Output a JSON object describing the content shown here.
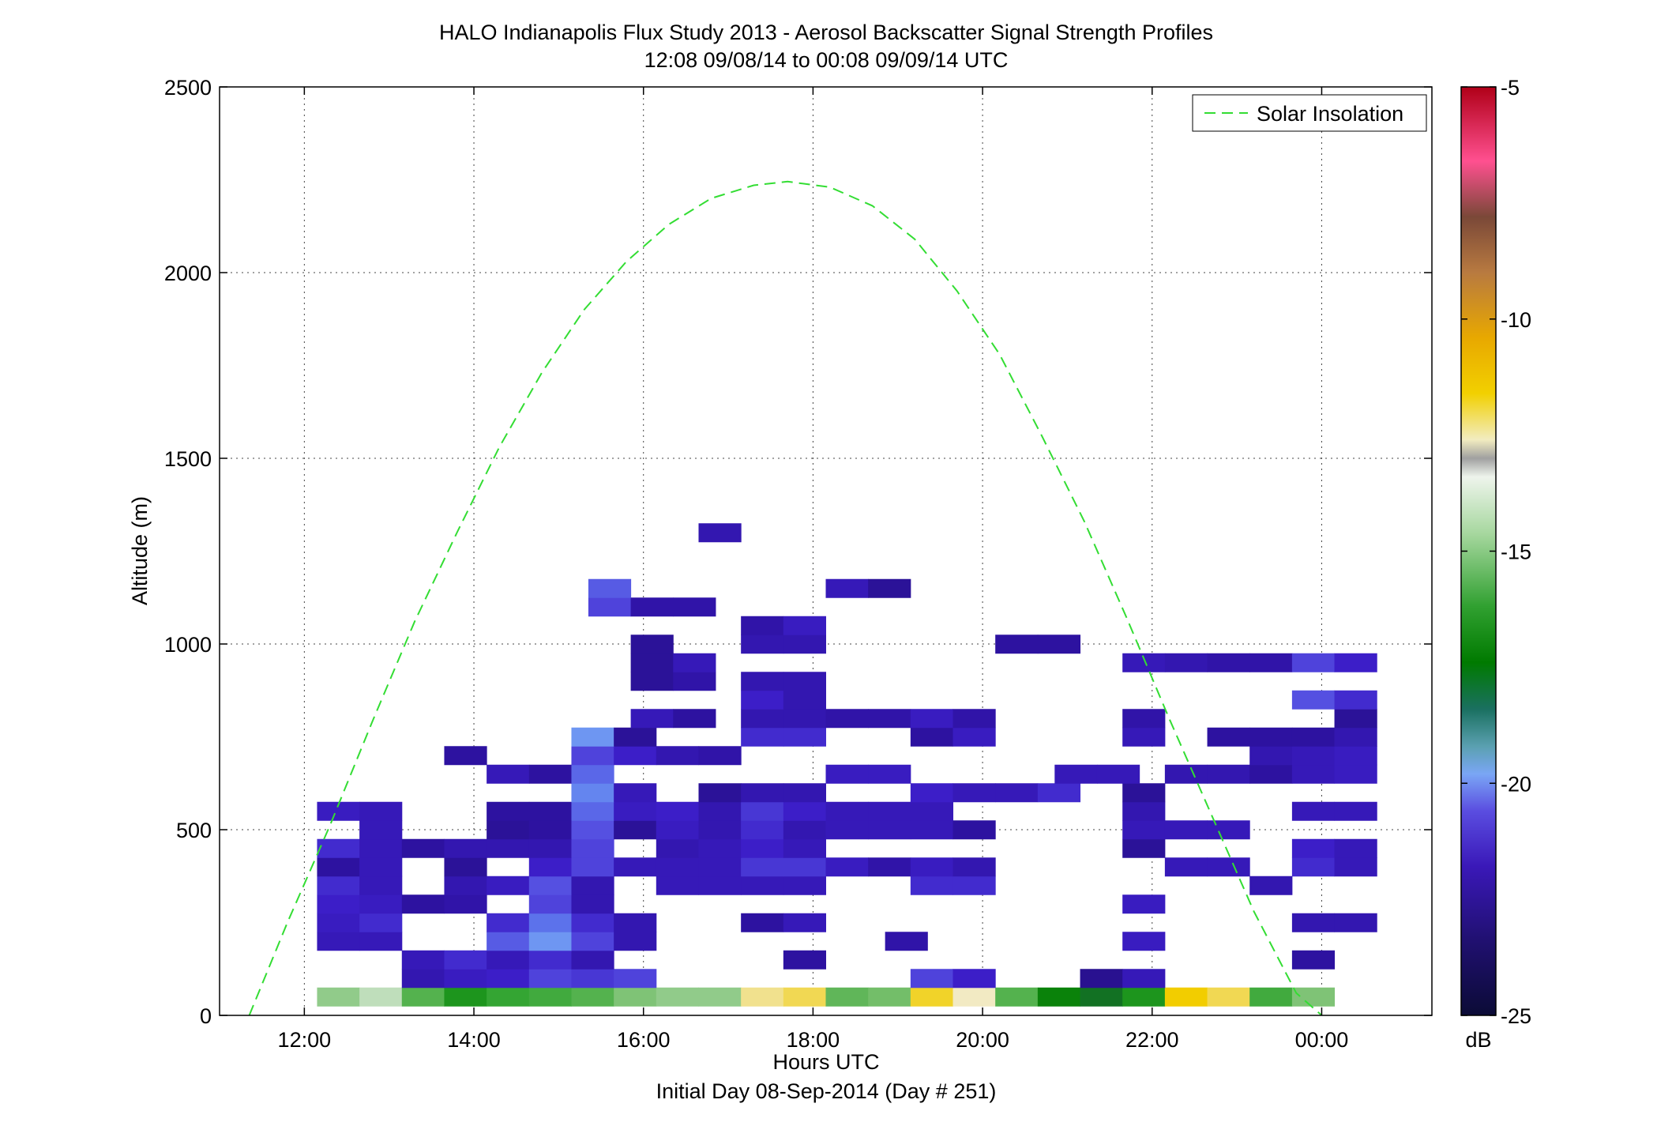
{
  "chart_data": {
    "type": "heatmap",
    "title": "HALO Indianapolis Flux Study 2013 - Aerosol Backscatter Signal Strength Profiles",
    "subtitle": "12:08 09/08/14 to 00:08 09/09/14  UTC",
    "xlabel": "Hours UTC",
    "xlabel2": "Initial Day 08-Sep-2014 (Day # 251)",
    "ylabel": "Altitude (m)",
    "xlim": [
      11.0,
      25.3
    ],
    "ylim": [
      0,
      2500
    ],
    "x_ticks": [
      12,
      14,
      16,
      18,
      20,
      22,
      24
    ],
    "x_tick_labels": [
      "12:00",
      "14:00",
      "16:00",
      "18:00",
      "20:00",
      "22:00",
      "00:00"
    ],
    "y_ticks": [
      0,
      500,
      1000,
      1500,
      2000,
      2500
    ],
    "y_tick_labels": [
      "0",
      "500",
      "1000",
      "1500",
      "2000",
      "2500"
    ],
    "grid": true,
    "legend": {
      "position": "top-right",
      "entries": [
        "Solar Insolation"
      ]
    },
    "colorbar": {
      "label": "dB",
      "range": [
        -25,
        -5
      ],
      "ticks": [
        -25,
        -20,
        -15,
        -10,
        -5
      ],
      "tick_labels": [
        "-25",
        "-20",
        "-15",
        "-10",
        "-5"
      ]
    },
    "bin_width_hours": 0.5,
    "bin_height_m": 50,
    "cells": [
      {
        "x": 12.4,
        "y": 50,
        "v": -16.5
      },
      {
        "x": 12.9,
        "y": 50,
        "v": -15.8
      },
      {
        "x": 13.4,
        "y": 50,
        "v": -17.5
      },
      {
        "x": 13.9,
        "y": 50,
        "v": -18.5
      },
      {
        "x": 14.4,
        "y": 50,
        "v": -18.0
      },
      {
        "x": 14.9,
        "y": 50,
        "v": -17.8
      },
      {
        "x": 15.4,
        "y": 50,
        "v": -17.5
      },
      {
        "x": 15.9,
        "y": 50,
        "v": -16.8
      },
      {
        "x": 16.4,
        "y": 50,
        "v": -16.5
      },
      {
        "x": 16.9,
        "y": 50,
        "v": -16.5
      },
      {
        "x": 17.4,
        "y": 50,
        "v": -14.3
      },
      {
        "x": 17.9,
        "y": 50,
        "v": -13.8
      },
      {
        "x": 18.4,
        "y": 50,
        "v": -17.3
      },
      {
        "x": 18.9,
        "y": 50,
        "v": -17.0
      },
      {
        "x": 19.4,
        "y": 50,
        "v": -13.5
      },
      {
        "x": 19.9,
        "y": 50,
        "v": -14.8
      },
      {
        "x": 20.4,
        "y": 50,
        "v": -17.5
      },
      {
        "x": 20.9,
        "y": 50,
        "v": -19.0
      },
      {
        "x": 21.4,
        "y": 50,
        "v": -19.5
      },
      {
        "x": 21.9,
        "y": 50,
        "v": -18.5
      },
      {
        "x": 22.4,
        "y": 50,
        "v": -13.2
      },
      {
        "x": 22.9,
        "y": 50,
        "v": -13.8
      },
      {
        "x": 23.4,
        "y": 50,
        "v": -17.8
      },
      {
        "x": 23.9,
        "y": 50,
        "v": -16.8
      },
      {
        "x": 13.4,
        "y": 100,
        "v": -22.6
      },
      {
        "x": 13.9,
        "y": 100,
        "v": -22.4
      },
      {
        "x": 14.4,
        "y": 100,
        "v": -22.3
      },
      {
        "x": 14.9,
        "y": 100,
        "v": -22.0
      },
      {
        "x": 15.4,
        "y": 100,
        "v": -22.1
      },
      {
        "x": 15.9,
        "y": 100,
        "v": -22.0
      },
      {
        "x": 19.4,
        "y": 100,
        "v": -22.0
      },
      {
        "x": 19.9,
        "y": 100,
        "v": -22.3
      },
      {
        "x": 21.4,
        "y": 100,
        "v": -23.0
      },
      {
        "x": 21.9,
        "y": 100,
        "v": -22.5
      },
      {
        "x": 13.4,
        "y": 150,
        "v": -22.5
      },
      {
        "x": 13.9,
        "y": 150,
        "v": -22.2
      },
      {
        "x": 14.4,
        "y": 150,
        "v": -22.5
      },
      {
        "x": 14.9,
        "y": 150,
        "v": -22.2
      },
      {
        "x": 15.4,
        "y": 150,
        "v": -22.6
      },
      {
        "x": 17.9,
        "y": 150,
        "v": -22.8
      },
      {
        "x": 23.9,
        "y": 150,
        "v": -22.8
      },
      {
        "x": 12.4,
        "y": 200,
        "v": -22.5
      },
      {
        "x": 12.9,
        "y": 200,
        "v": -22.5
      },
      {
        "x": 14.4,
        "y": 200,
        "v": -21.8
      },
      {
        "x": 14.9,
        "y": 200,
        "v": -21.2
      },
      {
        "x": 15.4,
        "y": 200,
        "v": -22.0
      },
      {
        "x": 15.9,
        "y": 200,
        "v": -22.6
      },
      {
        "x": 19.1,
        "y": 200,
        "v": -22.7
      },
      {
        "x": 21.9,
        "y": 200,
        "v": -22.4
      },
      {
        "x": 12.4,
        "y": 250,
        "v": -22.4
      },
      {
        "x": 12.9,
        "y": 250,
        "v": -22.2
      },
      {
        "x": 14.4,
        "y": 250,
        "v": -22.2
      },
      {
        "x": 14.9,
        "y": 250,
        "v": -21.6
      },
      {
        "x": 15.4,
        "y": 250,
        "v": -22.2
      },
      {
        "x": 15.9,
        "y": 250,
        "v": -22.6
      },
      {
        "x": 17.4,
        "y": 250,
        "v": -22.8
      },
      {
        "x": 17.9,
        "y": 250,
        "v": -22.5
      },
      {
        "x": 23.9,
        "y": 250,
        "v": -22.6
      },
      {
        "x": 24.4,
        "y": 250,
        "v": -22.6
      },
      {
        "x": 12.4,
        "y": 300,
        "v": -22.3
      },
      {
        "x": 12.9,
        "y": 300,
        "v": -22.4
      },
      {
        "x": 13.4,
        "y": 300,
        "v": -22.8
      },
      {
        "x": 13.9,
        "y": 300,
        "v": -22.7
      },
      {
        "x": 14.9,
        "y": 300,
        "v": -22.0
      },
      {
        "x": 15.4,
        "y": 300,
        "v": -22.6
      },
      {
        "x": 21.9,
        "y": 300,
        "v": -22.4
      },
      {
        "x": 12.4,
        "y": 350,
        "v": -22.2
      },
      {
        "x": 12.9,
        "y": 350,
        "v": -22.5
      },
      {
        "x": 13.9,
        "y": 350,
        "v": -22.6
      },
      {
        "x": 14.4,
        "y": 350,
        "v": -22.4
      },
      {
        "x": 14.9,
        "y": 350,
        "v": -21.9
      },
      {
        "x": 15.4,
        "y": 350,
        "v": -22.6
      },
      {
        "x": 16.4,
        "y": 350,
        "v": -22.5
      },
      {
        "x": 16.9,
        "y": 350,
        "v": -22.5
      },
      {
        "x": 17.4,
        "y": 350,
        "v": -22.5
      },
      {
        "x": 17.9,
        "y": 350,
        "v": -22.5
      },
      {
        "x": 19.4,
        "y": 350,
        "v": -22.2
      },
      {
        "x": 19.9,
        "y": 350,
        "v": -22.2
      },
      {
        "x": 23.4,
        "y": 350,
        "v": -22.6
      },
      {
        "x": 12.4,
        "y": 400,
        "v": -22.8
      },
      {
        "x": 12.9,
        "y": 400,
        "v": -22.5
      },
      {
        "x": 13.9,
        "y": 400,
        "v": -22.9
      },
      {
        "x": 14.9,
        "y": 400,
        "v": -22.3
      },
      {
        "x": 15.4,
        "y": 400,
        "v": -22.0
      },
      {
        "x": 15.9,
        "y": 400,
        "v": -22.5
      },
      {
        "x": 16.4,
        "y": 400,
        "v": -22.5
      },
      {
        "x": 16.9,
        "y": 400,
        "v": -22.5
      },
      {
        "x": 17.4,
        "y": 400,
        "v": -22.1
      },
      {
        "x": 17.9,
        "y": 400,
        "v": -22.1
      },
      {
        "x": 18.4,
        "y": 400,
        "v": -22.4
      },
      {
        "x": 18.9,
        "y": 400,
        "v": -22.7
      },
      {
        "x": 19.4,
        "y": 400,
        "v": -22.4
      },
      {
        "x": 19.9,
        "y": 400,
        "v": -22.6
      },
      {
        "x": 22.4,
        "y": 400,
        "v": -22.5
      },
      {
        "x": 22.9,
        "y": 400,
        "v": -22.5
      },
      {
        "x": 23.9,
        "y": 400,
        "v": -22.2
      },
      {
        "x": 24.4,
        "y": 400,
        "v": -22.5
      },
      {
        "x": 12.4,
        "y": 450,
        "v": -22.2
      },
      {
        "x": 12.9,
        "y": 450,
        "v": -22.5
      },
      {
        "x": 13.4,
        "y": 450,
        "v": -22.8
      },
      {
        "x": 13.9,
        "y": 450,
        "v": -22.6
      },
      {
        "x": 14.4,
        "y": 450,
        "v": -22.6
      },
      {
        "x": 14.9,
        "y": 450,
        "v": -22.6
      },
      {
        "x": 15.4,
        "y": 450,
        "v": -22.0
      },
      {
        "x": 16.4,
        "y": 450,
        "v": -22.6
      },
      {
        "x": 16.9,
        "y": 450,
        "v": -22.5
      },
      {
        "x": 17.4,
        "y": 450,
        "v": -22.3
      },
      {
        "x": 17.9,
        "y": 450,
        "v": -22.5
      },
      {
        "x": 21.9,
        "y": 450,
        "v": -22.9
      },
      {
        "x": 23.9,
        "y": 450,
        "v": -22.3
      },
      {
        "x": 24.4,
        "y": 450,
        "v": -22.5
      },
      {
        "x": 12.9,
        "y": 500,
        "v": -22.5
      },
      {
        "x": 14.4,
        "y": 500,
        "v": -22.9
      },
      {
        "x": 14.9,
        "y": 500,
        "v": -22.8
      },
      {
        "x": 15.4,
        "y": 500,
        "v": -21.9
      },
      {
        "x": 15.9,
        "y": 500,
        "v": -22.9
      },
      {
        "x": 16.4,
        "y": 500,
        "v": -22.4
      },
      {
        "x": 16.9,
        "y": 500,
        "v": -22.6
      },
      {
        "x": 17.4,
        "y": 500,
        "v": -22.2
      },
      {
        "x": 17.9,
        "y": 500,
        "v": -22.6
      },
      {
        "x": 18.4,
        "y": 500,
        "v": -22.5
      },
      {
        "x": 18.9,
        "y": 500,
        "v": -22.5
      },
      {
        "x": 19.4,
        "y": 500,
        "v": -22.5
      },
      {
        "x": 19.9,
        "y": 500,
        "v": -22.8
      },
      {
        "x": 21.9,
        "y": 500,
        "v": -22.5
      },
      {
        "x": 22.4,
        "y": 500,
        "v": -22.5
      },
      {
        "x": 22.9,
        "y": 500,
        "v": -22.5
      },
      {
        "x": 12.4,
        "y": 550,
        "v": -22.4
      },
      {
        "x": 12.9,
        "y": 550,
        "v": -22.5
      },
      {
        "x": 14.4,
        "y": 550,
        "v": -22.8
      },
      {
        "x": 14.9,
        "y": 550,
        "v": -22.8
      },
      {
        "x": 15.4,
        "y": 550,
        "v": -21.7
      },
      {
        "x": 15.9,
        "y": 550,
        "v": -22.4
      },
      {
        "x": 16.4,
        "y": 550,
        "v": -22.3
      },
      {
        "x": 16.9,
        "y": 550,
        "v": -22.6
      },
      {
        "x": 17.4,
        "y": 550,
        "v": -22.1
      },
      {
        "x": 17.9,
        "y": 550,
        "v": -22.3
      },
      {
        "x": 18.4,
        "y": 550,
        "v": -22.5
      },
      {
        "x": 18.9,
        "y": 550,
        "v": -22.5
      },
      {
        "x": 19.4,
        "y": 550,
        "v": -22.5
      },
      {
        "x": 21.9,
        "y": 550,
        "v": -22.6
      },
      {
        "x": 23.9,
        "y": 550,
        "v": -22.5
      },
      {
        "x": 24.4,
        "y": 550,
        "v": -22.5
      },
      {
        "x": 15.4,
        "y": 600,
        "v": -21.4
      },
      {
        "x": 15.9,
        "y": 600,
        "v": -22.5
      },
      {
        "x": 16.9,
        "y": 600,
        "v": -22.9
      },
      {
        "x": 17.4,
        "y": 600,
        "v": -22.6
      },
      {
        "x": 17.9,
        "y": 600,
        "v": -22.6
      },
      {
        "x": 19.4,
        "y": 600,
        "v": -22.3
      },
      {
        "x": 19.9,
        "y": 600,
        "v": -22.5
      },
      {
        "x": 20.4,
        "y": 600,
        "v": -22.5
      },
      {
        "x": 20.9,
        "y": 600,
        "v": -22.2
      },
      {
        "x": 21.9,
        "y": 600,
        "v": -22.9
      },
      {
        "x": 14.4,
        "y": 650,
        "v": -22.5
      },
      {
        "x": 14.9,
        "y": 650,
        "v": -22.8
      },
      {
        "x": 15.4,
        "y": 650,
        "v": -21.7
      },
      {
        "x": 18.4,
        "y": 650,
        "v": -22.4
      },
      {
        "x": 18.9,
        "y": 650,
        "v": -22.4
      },
      {
        "x": 21.1,
        "y": 650,
        "v": -22.5
      },
      {
        "x": 21.6,
        "y": 650,
        "v": -22.5
      },
      {
        "x": 22.4,
        "y": 650,
        "v": -22.6
      },
      {
        "x": 22.9,
        "y": 650,
        "v": -22.6
      },
      {
        "x": 23.4,
        "y": 650,
        "v": -22.8
      },
      {
        "x": 23.9,
        "y": 650,
        "v": -22.5
      },
      {
        "x": 24.4,
        "y": 650,
        "v": -22.4
      },
      {
        "x": 13.9,
        "y": 700,
        "v": -22.8
      },
      {
        "x": 15.4,
        "y": 700,
        "v": -22.0
      },
      {
        "x": 15.9,
        "y": 700,
        "v": -22.3
      },
      {
        "x": 16.4,
        "y": 700,
        "v": -22.6
      },
      {
        "x": 16.9,
        "y": 700,
        "v": -22.7
      },
      {
        "x": 23.4,
        "y": 700,
        "v": -22.6
      },
      {
        "x": 23.9,
        "y": 700,
        "v": -22.5
      },
      {
        "x": 24.4,
        "y": 700,
        "v": -22.4
      },
      {
        "x": 15.4,
        "y": 750,
        "v": -21.2
      },
      {
        "x": 15.9,
        "y": 750,
        "v": -22.9
      },
      {
        "x": 17.4,
        "y": 750,
        "v": -22.2
      },
      {
        "x": 17.9,
        "y": 750,
        "v": -22.2
      },
      {
        "x": 19.4,
        "y": 750,
        "v": -22.8
      },
      {
        "x": 19.9,
        "y": 750,
        "v": -22.4
      },
      {
        "x": 21.9,
        "y": 750,
        "v": -22.5
      },
      {
        "x": 22.9,
        "y": 750,
        "v": -22.8
      },
      {
        "x": 23.4,
        "y": 750,
        "v": -22.8
      },
      {
        "x": 23.9,
        "y": 750,
        "v": -22.8
      },
      {
        "x": 24.4,
        "y": 750,
        "v": -22.6
      },
      {
        "x": 16.1,
        "y": 800,
        "v": -22.5
      },
      {
        "x": 16.6,
        "y": 800,
        "v": -22.8
      },
      {
        "x": 17.4,
        "y": 800,
        "v": -22.6
      },
      {
        "x": 17.9,
        "y": 800,
        "v": -22.6
      },
      {
        "x": 18.4,
        "y": 800,
        "v": -22.7
      },
      {
        "x": 18.9,
        "y": 800,
        "v": -22.7
      },
      {
        "x": 19.4,
        "y": 800,
        "v": -22.4
      },
      {
        "x": 19.9,
        "y": 800,
        "v": -22.7
      },
      {
        "x": 21.9,
        "y": 800,
        "v": -22.7
      },
      {
        "x": 24.4,
        "y": 800,
        "v": -22.9
      },
      {
        "x": 17.4,
        "y": 850,
        "v": -22.3
      },
      {
        "x": 17.9,
        "y": 850,
        "v": -22.6
      },
      {
        "x": 23.9,
        "y": 850,
        "v": -21.9
      },
      {
        "x": 24.4,
        "y": 850,
        "v": -22.2
      },
      {
        "x": 16.1,
        "y": 900,
        "v": -22.9
      },
      {
        "x": 16.6,
        "y": 900,
        "v": -22.7
      },
      {
        "x": 17.4,
        "y": 900,
        "v": -22.6
      },
      {
        "x": 17.9,
        "y": 900,
        "v": -22.6
      },
      {
        "x": 16.1,
        "y": 950,
        "v": -22.9
      },
      {
        "x": 16.6,
        "y": 950,
        "v": -22.5
      },
      {
        "x": 21.9,
        "y": 950,
        "v": -22.5
      },
      {
        "x": 22.4,
        "y": 950,
        "v": -22.6
      },
      {
        "x": 22.9,
        "y": 950,
        "v": -22.7
      },
      {
        "x": 23.4,
        "y": 950,
        "v": -22.7
      },
      {
        "x": 23.9,
        "y": 950,
        "v": -22.0
      },
      {
        "x": 24.4,
        "y": 950,
        "v": -22.3
      },
      {
        "x": 16.1,
        "y": 1000,
        "v": -22.9
      },
      {
        "x": 17.4,
        "y": 1000,
        "v": -22.6
      },
      {
        "x": 17.9,
        "y": 1000,
        "v": -22.6
      },
      {
        "x": 20.4,
        "y": 1000,
        "v": -22.8
      },
      {
        "x": 20.9,
        "y": 1000,
        "v": -22.8
      },
      {
        "x": 17.4,
        "y": 1050,
        "v": -22.7
      },
      {
        "x": 17.9,
        "y": 1050,
        "v": -22.4
      },
      {
        "x": 15.6,
        "y": 1100,
        "v": -22.0
      },
      {
        "x": 16.1,
        "y": 1100,
        "v": -22.7
      },
      {
        "x": 16.6,
        "y": 1100,
        "v": -22.7
      },
      {
        "x": 15.6,
        "y": 1150,
        "v": -21.8
      },
      {
        "x": 18.4,
        "y": 1150,
        "v": -22.5
      },
      {
        "x": 18.9,
        "y": 1150,
        "v": -22.9
      },
      {
        "x": 16.9,
        "y": 1300,
        "v": -22.6
      }
    ],
    "solar_insolation": {
      "name": "Solar Insolation",
      "x": [
        11.35,
        11.8,
        12.3,
        12.8,
        13.3,
        13.8,
        14.3,
        14.8,
        15.3,
        15.8,
        16.3,
        16.8,
        17.3,
        17.7,
        18.2,
        18.7,
        19.2,
        19.7,
        20.2,
        20.7,
        21.2,
        21.7,
        22.2,
        22.7,
        23.2,
        23.7,
        24.0
      ],
      "y": [
        0,
        250,
        510,
        790,
        1060,
        1300,
        1530,
        1730,
        1900,
        2030,
        2130,
        2200,
        2235,
        2245,
        2230,
        2180,
        2090,
        1950,
        1780,
        1560,
        1330,
        1070,
        800,
        540,
        280,
        60,
        0
      ]
    }
  }
}
